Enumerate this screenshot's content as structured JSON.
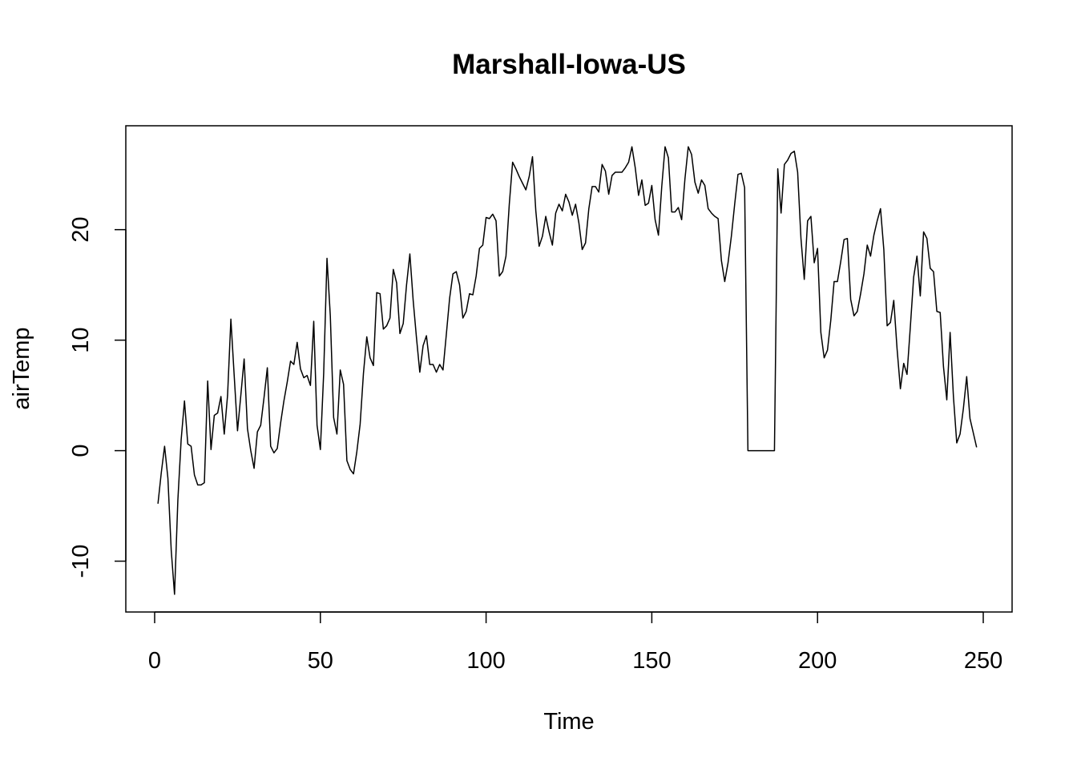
{
  "chart_data": {
    "type": "line",
    "title": "Marshall-Iowa-US",
    "xlabel": "Time",
    "ylabel": "airTemp",
    "xlim": [
      -8.7,
      258.7
    ],
    "ylim": [
      -14.6,
      29.4
    ],
    "xticks": [
      0,
      50,
      100,
      150,
      200,
      250
    ],
    "yticks": [
      -10,
      0,
      10,
      20
    ],
    "grid": false,
    "legend": "none",
    "line_color": "#000000",
    "series": [
      {
        "x": [
          1,
          2,
          3,
          4,
          5,
          6,
          7,
          8,
          9,
          10,
          11,
          12,
          13,
          14,
          15,
          16,
          17,
          18,
          19,
          20,
          21,
          22,
          23,
          24,
          25,
          26,
          27,
          28,
          29,
          30,
          31,
          32,
          33,
          34,
          35,
          36,
          37,
          38,
          39,
          40,
          41,
          42,
          43,
          44,
          45,
          46,
          47,
          48,
          49,
          50,
          51,
          52,
          53,
          54,
          55,
          56,
          57,
          58,
          59,
          60,
          61,
          62,
          63,
          64,
          65,
          66,
          67,
          68,
          69,
          70,
          71,
          72,
          73,
          74,
          75,
          76,
          77,
          78,
          79,
          80,
          81,
          82,
          83,
          84,
          85,
          86,
          87,
          88,
          89,
          90,
          91,
          92,
          93,
          94,
          95,
          96,
          97,
          98,
          99,
          100,
          101,
          102,
          103,
          104,
          105,
          106,
          107,
          108,
          109,
          110,
          111,
          112,
          113,
          114,
          115,
          116,
          117,
          118,
          119,
          120,
          121,
          122,
          123,
          124,
          125,
          126,
          127,
          128,
          129,
          130,
          131,
          132,
          133,
          134,
          135,
          136,
          137,
          138,
          139,
          140,
          141,
          142,
          143,
          144,
          145,
          146,
          147,
          148,
          149,
          150,
          151,
          152,
          153,
          154,
          155,
          156,
          157,
          158,
          159,
          160,
          161,
          162,
          163,
          164,
          165,
          166,
          167,
          168,
          169,
          170,
          171,
          172,
          173,
          174,
          175,
          176,
          177,
          178,
          179,
          180,
          181,
          182,
          183,
          184,
          185,
          186,
          187,
          188,
          189,
          190,
          191,
          192,
          193,
          194,
          195,
          196,
          197,
          198,
          199,
          200,
          201,
          202,
          203,
          204,
          205,
          206,
          207,
          208,
          209,
          210,
          211,
          212,
          213,
          214,
          215,
          216,
          217,
          218,
          219,
          220,
          221,
          222,
          223,
          224,
          225,
          226,
          227,
          228,
          229,
          230,
          231,
          232,
          233,
          234,
          235,
          236,
          237,
          238,
          239,
          240,
          241,
          242,
          243,
          244,
          245,
          246,
          247,
          248
        ],
        "values": [
          -4.8,
          -2,
          0.4,
          -2.5,
          -9,
          -13,
          -4.5,
          1,
          4.5,
          0.6,
          0.4,
          -2.2,
          -3.1,
          -3.1,
          -2.9,
          6.3,
          0.1,
          3.2,
          3.4,
          4.9,
          1.5,
          5,
          11.9,
          6.8,
          1.8,
          5,
          8.3,
          2,
          0,
          -1.6,
          1.7,
          2.3,
          4.8,
          7.5,
          0.4,
          -0.2,
          0.2,
          2.5,
          4.5,
          6.2,
          8.1,
          7.8,
          9.8,
          7.4,
          6.6,
          6.8,
          5.9,
          11.7,
          2.3,
          0.1,
          7,
          17.4,
          12.2,
          3,
          1.5,
          7.3,
          6,
          -0.9,
          -1.7,
          -2.1,
          -0.1,
          2.4,
          7,
          10.3,
          8.4,
          7.7,
          14.3,
          14.2,
          11,
          11.3,
          12,
          16.4,
          15.2,
          10.6,
          11.5,
          15,
          17.8,
          13.6,
          10.2,
          7.1,
          9.5,
          10.4,
          7.8,
          7.8,
          7.1,
          7.8,
          7.3,
          10.5,
          13.8,
          16,
          16.2,
          15,
          12,
          12.6,
          14.2,
          14.1,
          15.8,
          18.3,
          18.6,
          21.1,
          21,
          21.4,
          20.8,
          15.8,
          16.2,
          17.6,
          22.3,
          26.1,
          25.5,
          24.8,
          24.2,
          23.6,
          24.8,
          26.6,
          21.7,
          18.5,
          19.4,
          21.2,
          19.8,
          18.6,
          21.5,
          22.3,
          21.7,
          23.2,
          22.5,
          21.3,
          22.3,
          20.6,
          18.2,
          18.8,
          21.9,
          23.9,
          23.9,
          23.4,
          25.9,
          25.3,
          23.2,
          24.9,
          25.2,
          25.2,
          25.2,
          25.6,
          26.1,
          27.5,
          25.6,
          23.1,
          24.5,
          22.2,
          22.4,
          24,
          20.9,
          19.5,
          23.9,
          27.5,
          26.5,
          21.6,
          21.6,
          22,
          20.9,
          24.6,
          27.5,
          26.8,
          24.3,
          23.3,
          24.5,
          24,
          21.9,
          21.5,
          21.2,
          21,
          17.2,
          15.3,
          17,
          19.4,
          22.3,
          25,
          25.1,
          23.8,
          0,
          0,
          0,
          0,
          0,
          0,
          0,
          0,
          0,
          25.5,
          21.5,
          25.9,
          26.3,
          26.9,
          27.1,
          25.2,
          19.2,
          15.5,
          20.8,
          21.2,
          17,
          18.3,
          10.7,
          8.4,
          9.1,
          11.8,
          15.3,
          15.3,
          17.1,
          19.1,
          19.2,
          13.7,
          12.2,
          12.6,
          14.2,
          16,
          18.6,
          17.6,
          19.5,
          20.8,
          21.9,
          18.2,
          11.3,
          11.6,
          13.6,
          9.2,
          5.6,
          7.9,
          6.9,
          11.2,
          15.7,
          17.6,
          14,
          19.8,
          19.2,
          16.5,
          16.2,
          12.6,
          12.5,
          7.6,
          4.6,
          10.7,
          4.9,
          0.7,
          1.5,
          3.8,
          6.7,
          2.9,
          1.6,
          0.3
        ]
      }
    ]
  }
}
